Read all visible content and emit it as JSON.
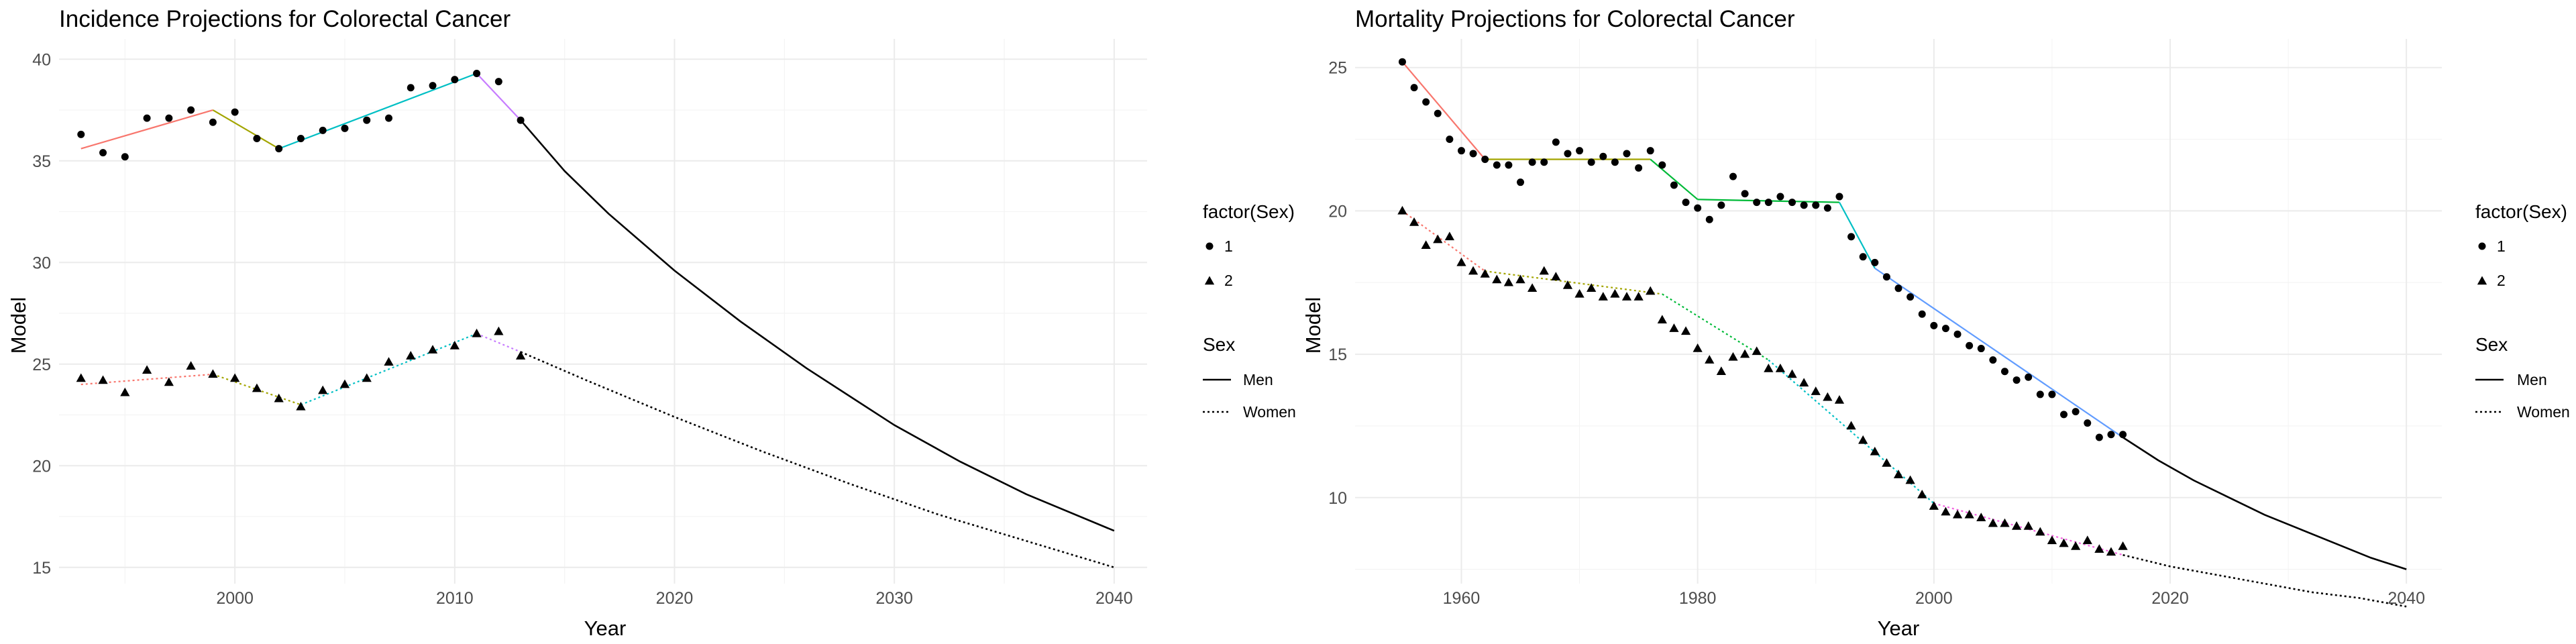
{
  "chart_data": [
    {
      "type": "line",
      "title": "Incidence Projections for Colorectal Cancer",
      "xlabel": "Year",
      "ylabel": "Model",
      "xlim": [
        1992,
        2041.5
      ],
      "ylim": [
        14.2,
        41.0
      ],
      "x_ticks": [
        2000,
        2010,
        2020,
        2030,
        2040
      ],
      "y_ticks": [
        15,
        20,
        25,
        30,
        35,
        40
      ],
      "grid": true,
      "legend_position": "right",
      "legends": [
        {
          "title": "factor(Sex)",
          "entries": [
            {
              "label": "1",
              "shape": "circle"
            },
            {
              "label": "2",
              "shape": "triangle"
            }
          ]
        },
        {
          "title": "Sex",
          "entries": [
            {
              "label": "Men",
              "dash": "solid"
            },
            {
              "label": "Women",
              "dash": "dotted"
            }
          ]
        }
      ],
      "observed": [
        {
          "sex": "1",
          "shape": "circle",
          "x": [
            1993,
            1994,
            1995,
            1996,
            1997,
            1998,
            1999,
            2000,
            2001,
            2002,
            2003,
            2004,
            2005,
            2006,
            2007,
            2008,
            2009,
            2010,
            2011,
            2012,
            2013
          ],
          "y": [
            36.3,
            35.4,
            35.2,
            37.1,
            37.1,
            37.5,
            36.9,
            37.4,
            36.1,
            35.6,
            36.1,
            36.5,
            36.6,
            37.0,
            37.1,
            38.6,
            38.7,
            39.0,
            39.3,
            38.9,
            37.0
          ]
        },
        {
          "sex": "2",
          "shape": "triangle",
          "x": [
            1993,
            1994,
            1995,
            1996,
            1997,
            1998,
            1999,
            2000,
            2001,
            2002,
            2003,
            2004,
            2005,
            2006,
            2007,
            2008,
            2009,
            2010,
            2011,
            2012,
            2013
          ],
          "y": [
            24.3,
            24.2,
            23.6,
            24.7,
            24.1,
            24.9,
            24.5,
            24.3,
            23.8,
            23.3,
            22.9,
            23.7,
            24.0,
            24.3,
            25.1,
            25.4,
            25.7,
            25.9,
            26.5,
            26.6,
            25.4
          ]
        }
      ],
      "segments": [
        {
          "sex": "Men",
          "dash": "solid",
          "color": "#F8766D",
          "x": [
            1993,
            1999
          ],
          "y": [
            35.6,
            37.5
          ]
        },
        {
          "sex": "Men",
          "dash": "solid",
          "color": "#A3A500",
          "x": [
            1999,
            2002
          ],
          "y": [
            37.5,
            35.6
          ]
        },
        {
          "sex": "Men",
          "dash": "solid",
          "color": "#00BFC4",
          "x": [
            2002,
            2011
          ],
          "y": [
            35.6,
            39.3
          ]
        },
        {
          "sex": "Men",
          "dash": "solid",
          "color": "#C77CFF",
          "x": [
            2011,
            2013
          ],
          "y": [
            39.3,
            37.0
          ]
        },
        {
          "sex": "Women",
          "dash": "dotted",
          "color": "#F8766D",
          "x": [
            1993,
            1999
          ],
          "y": [
            24.0,
            24.5
          ]
        },
        {
          "sex": "Women",
          "dash": "dotted",
          "color": "#A3A500",
          "x": [
            1999,
            2003
          ],
          "y": [
            24.5,
            23.0
          ]
        },
        {
          "sex": "Women",
          "dash": "dotted",
          "color": "#00BFC4",
          "x": [
            2003,
            2011
          ],
          "y": [
            23.0,
            26.5
          ]
        },
        {
          "sex": "Women",
          "dash": "dotted",
          "color": "#C77CFF",
          "x": [
            2011,
            2013
          ],
          "y": [
            26.5,
            25.6
          ]
        }
      ],
      "projections": [
        {
          "sex": "Men",
          "dash": "solid",
          "color": "#000000",
          "x": [
            2013,
            2015,
            2017,
            2020,
            2023,
            2026,
            2030,
            2033,
            2036,
            2040
          ],
          "y": [
            37.0,
            34.5,
            32.4,
            29.6,
            27.1,
            24.8,
            22.0,
            20.2,
            18.6,
            16.8
          ]
        },
        {
          "sex": "Women",
          "dash": "dotted",
          "color": "#000000",
          "x": [
            2013,
            2016,
            2020,
            2024,
            2028,
            2032,
            2036,
            2040
          ],
          "y": [
            25.6,
            24.2,
            22.4,
            20.7,
            19.1,
            17.6,
            16.3,
            15.0
          ]
        }
      ]
    },
    {
      "type": "line",
      "title": "Mortality Projections for Colorectal Cancer",
      "xlabel": "Year",
      "ylabel": "Model",
      "xlim": [
        1951,
        2043
      ],
      "ylim": [
        7.0,
        26.0
      ],
      "x_ticks": [
        1960,
        1980,
        2000,
        2020,
        2040
      ],
      "y_ticks": [
        10,
        15,
        20,
        25
      ],
      "grid": true,
      "legend_position": "right",
      "legends": [
        {
          "title": "factor(Sex)",
          "entries": [
            {
              "label": "1",
              "shape": "circle"
            },
            {
              "label": "2",
              "shape": "triangle"
            }
          ]
        },
        {
          "title": "Sex",
          "entries": [
            {
              "label": "Men",
              "dash": "solid"
            },
            {
              "label": "Women",
              "dash": "dotted"
            }
          ]
        }
      ],
      "observed": [
        {
          "sex": "1",
          "shape": "circle",
          "x": [
            1955,
            1956,
            1957,
            1958,
            1959,
            1960,
            1961,
            1962,
            1963,
            1964,
            1965,
            1966,
            1967,
            1968,
            1969,
            1970,
            1971,
            1972,
            1973,
            1974,
            1975,
            1976,
            1977,
            1978,
            1979,
            1980,
            1981,
            1982,
            1983,
            1984,
            1985,
            1986,
            1987,
            1988,
            1989,
            1990,
            1991,
            1992,
            1993,
            1994,
            1995,
            1996,
            1997,
            1998,
            1999,
            2000,
            2001,
            2002,
            2003,
            2004,
            2005,
            2006,
            2007,
            2008,
            2009,
            2010,
            2011,
            2012,
            2013,
            2014,
            2015,
            2016
          ],
          "y": [
            25.2,
            24.3,
            23.8,
            23.4,
            22.5,
            22.1,
            22.0,
            21.8,
            21.6,
            21.6,
            21.0,
            21.7,
            21.7,
            22.4,
            22.0,
            22.1,
            21.7,
            21.9,
            21.7,
            22.0,
            21.5,
            22.1,
            21.6,
            20.9,
            20.3,
            20.1,
            19.7,
            20.2,
            21.2,
            20.6,
            20.3,
            20.3,
            20.5,
            20.3,
            20.2,
            20.2,
            20.1,
            20.5,
            19.1,
            18.4,
            18.2,
            17.7,
            17.3,
            17.0,
            16.4,
            16.0,
            15.9,
            15.7,
            15.3,
            15.2,
            14.8,
            14.4,
            14.1,
            14.2,
            13.6,
            13.6,
            12.9,
            13.0,
            12.6,
            12.1,
            12.2,
            12.2
          ]
        },
        {
          "sex": "2",
          "shape": "triangle",
          "x": [
            1955,
            1956,
            1957,
            1958,
            1959,
            1960,
            1961,
            1962,
            1963,
            1964,
            1965,
            1966,
            1967,
            1968,
            1969,
            1970,
            1971,
            1972,
            1973,
            1974,
            1975,
            1976,
            1977,
            1978,
            1979,
            1980,
            1981,
            1982,
            1983,
            1984,
            1985,
            1986,
            1987,
            1988,
            1989,
            1990,
            1991,
            1992,
            1993,
            1994,
            1995,
            1996,
            1997,
            1998,
            1999,
            2000,
            2001,
            2002,
            2003,
            2004,
            2005,
            2006,
            2007,
            2008,
            2009,
            2010,
            2011,
            2012,
            2013,
            2014,
            2015,
            2016
          ],
          "y": [
            20.0,
            19.6,
            18.8,
            19.0,
            19.1,
            18.2,
            17.9,
            17.8,
            17.6,
            17.5,
            17.6,
            17.3,
            17.9,
            17.7,
            17.4,
            17.1,
            17.3,
            17.0,
            17.1,
            17.0,
            17.0,
            17.2,
            16.2,
            15.9,
            15.8,
            15.2,
            14.8,
            14.4,
            14.9,
            15.0,
            15.1,
            14.5,
            14.5,
            14.3,
            14.0,
            13.7,
            13.5,
            13.4,
            12.5,
            12.0,
            11.6,
            11.2,
            10.8,
            10.6,
            10.1,
            9.7,
            9.5,
            9.4,
            9.4,
            9.3,
            9.1,
            9.1,
            9.0,
            9.0,
            8.8,
            8.5,
            8.4,
            8.3,
            8.5,
            8.2,
            8.1,
            8.3
          ]
        }
      ],
      "segments": [
        {
          "sex": "Men",
          "dash": "solid",
          "color": "#F8766D",
          "x": [
            1955,
            1962
          ],
          "y": [
            25.2,
            21.8
          ]
        },
        {
          "sex": "Men",
          "dash": "solid",
          "color": "#A3A500",
          "x": [
            1962,
            1976
          ],
          "y": [
            21.8,
            21.8
          ]
        },
        {
          "sex": "Men",
          "dash": "solid",
          "color": "#00BA38",
          "x": [
            1976,
            1980
          ],
          "y": [
            21.8,
            20.4
          ]
        },
        {
          "sex": "Men",
          "dash": "solid",
          "color": "#00BA38",
          "x": [
            1980,
            1992
          ],
          "y": [
            20.4,
            20.3
          ]
        },
        {
          "sex": "Men",
          "dash": "solid",
          "color": "#00BFC4",
          "x": [
            1992,
            1995
          ],
          "y": [
            20.3,
            18.0
          ]
        },
        {
          "sex": "Men",
          "dash": "solid",
          "color": "#619CFF",
          "x": [
            1995,
            2016
          ],
          "y": [
            18.0,
            12.1
          ]
        },
        {
          "sex": "Women",
          "dash": "dotted",
          "color": "#F8766D",
          "x": [
            1955,
            1962
          ],
          "y": [
            20.0,
            17.9
          ]
        },
        {
          "sex": "Women",
          "dash": "dotted",
          "color": "#A3A500",
          "x": [
            1962,
            1977
          ],
          "y": [
            17.9,
            17.1
          ]
        },
        {
          "sex": "Women",
          "dash": "dotted",
          "color": "#00BA38",
          "x": [
            1977,
            1986
          ],
          "y": [
            17.1,
            14.8
          ]
        },
        {
          "sex": "Women",
          "dash": "dotted",
          "color": "#00BFC4",
          "x": [
            1986,
            2000
          ],
          "y": [
            14.8,
            9.8
          ]
        },
        {
          "sex": "Women",
          "dash": "dotted",
          "color": "#F564E3",
          "x": [
            2000,
            2016
          ],
          "y": [
            9.8,
            8.0
          ]
        }
      ],
      "projections": [
        {
          "sex": "Men",
          "dash": "solid",
          "color": "#000000",
          "x": [
            2016,
            2019,
            2022,
            2025,
            2028,
            2031,
            2034,
            2037,
            2040
          ],
          "y": [
            12.1,
            11.3,
            10.6,
            10.0,
            9.4,
            8.9,
            8.4,
            7.9,
            7.5
          ]
        },
        {
          "sex": "Women",
          "dash": "dotted",
          "color": "#000000",
          "x": [
            2016,
            2020,
            2024,
            2028,
            2032,
            2036,
            2040
          ],
          "y": [
            8.0,
            7.6,
            7.3,
            7.0,
            6.7,
            6.5,
            6.2
          ]
        }
      ]
    }
  ]
}
